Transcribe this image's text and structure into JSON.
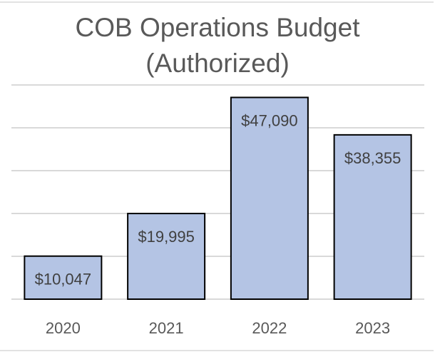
{
  "chart_data": {
    "type": "bar",
    "title": [
      "COB Operations Budget",
      "(Authorized)"
    ],
    "categories": [
      "2020",
      "2021",
      "2022",
      "2023"
    ],
    "values": [
      10047,
      19995,
      47090,
      38355
    ],
    "data_labels": [
      "$10,047",
      "$19,995",
      "$47,090",
      "$38,355"
    ],
    "ylim": [
      0,
      50000
    ],
    "ytick_step": 10000,
    "grid": true,
    "y_axis_labels_shown": false,
    "bar_color": "#b4c4e4",
    "bar_edge_color": "#000000",
    "xlabel": "",
    "ylabel": ""
  }
}
